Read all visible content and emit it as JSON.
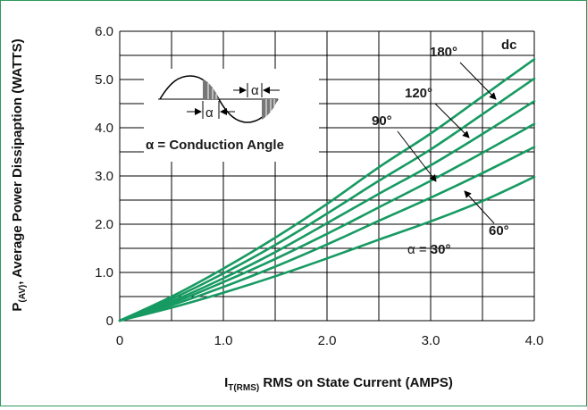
{
  "colors": {
    "curve": "#179a62",
    "grid": "#000000",
    "frame": "#2e9a5e",
    "text": "#1a1a1a"
  },
  "chart_data": {
    "type": "line",
    "title": "",
    "xlabel": {
      "main": "I",
      "sub": "T(RMS)",
      "rest": " RMS on State Current (AMPS)"
    },
    "ylabel": {
      "main": "P",
      "sub": "(AV)",
      "rest": ", Average Power Dissipaption (WATTS)"
    },
    "xlim": [
      0,
      4.0
    ],
    "ylim": [
      0,
      6.0
    ],
    "x_ticks": [
      {
        "v": 0,
        "label": "0"
      },
      {
        "v": 1,
        "label": "1.0"
      },
      {
        "v": 2,
        "label": "2.0"
      },
      {
        "v": 3,
        "label": "3.0"
      },
      {
        "v": 4,
        "label": "4.0"
      }
    ],
    "y_ticks": [
      {
        "v": 0,
        "label": "0"
      },
      {
        "v": 1,
        "label": "1.0"
      },
      {
        "v": 2,
        "label": "2.0"
      },
      {
        "v": 3,
        "label": "3.0"
      },
      {
        "v": 4,
        "label": "4.0"
      },
      {
        "v": 5,
        "label": "5.0"
      },
      {
        "v": 6,
        "label": "6.0"
      }
    ],
    "grid": true,
    "series": [
      {
        "name": "dc",
        "x": [
          0,
          0.5,
          1.0,
          1.5,
          2.0,
          2.5,
          3.0,
          3.5,
          4.0
        ],
        "y": [
          0,
          0.5,
          1.08,
          1.72,
          2.42,
          3.18,
          3.88,
          4.65,
          5.42
        ]
      },
      {
        "name": "180°",
        "x": [
          0,
          0.5,
          1.0,
          1.5,
          2.0,
          2.5,
          3.0,
          3.5,
          4.0
        ],
        "y": [
          0,
          0.45,
          0.98,
          1.57,
          2.22,
          2.9,
          3.55,
          4.28,
          5.02
        ]
      },
      {
        "name": "120°",
        "x": [
          0,
          0.5,
          1.0,
          1.5,
          2.0,
          2.5,
          3.0,
          3.5,
          4.0
        ],
        "y": [
          0,
          0.4,
          0.88,
          1.42,
          2.02,
          2.63,
          3.22,
          3.87,
          4.55
        ]
      },
      {
        "name": "90°",
        "x": [
          0,
          0.5,
          1.0,
          1.5,
          2.0,
          2.5,
          3.0,
          3.5,
          4.0
        ],
        "y": [
          0,
          0.36,
          0.8,
          1.28,
          1.8,
          2.35,
          2.9,
          3.48,
          4.08
        ]
      },
      {
        "name": "60°",
        "x": [
          0,
          0.5,
          1.0,
          1.5,
          2.0,
          2.5,
          3.0,
          3.5,
          4.0
        ],
        "y": [
          0,
          0.32,
          0.7,
          1.12,
          1.58,
          2.07,
          2.55,
          3.06,
          3.6
        ]
      },
      {
        "name": "α = 30°",
        "x": [
          0,
          0.5,
          1.0,
          1.5,
          2.0,
          2.5,
          3.0,
          3.5,
          4.0
        ],
        "y": [
          0,
          0.27,
          0.58,
          0.92,
          1.29,
          1.68,
          2.06,
          2.48,
          2.98
        ]
      }
    ],
    "annotations": {
      "dc": "dc",
      "deg180": "180°",
      "deg120": "120°",
      "deg90": "90°",
      "deg60": "60°",
      "alpha30_prefix": "α = ",
      "alpha30_value": "30°",
      "inset_alpha_symbol": "α",
      "inset_caption_symbol": "α",
      "inset_caption_text": " = Conduction Angle"
    }
  }
}
